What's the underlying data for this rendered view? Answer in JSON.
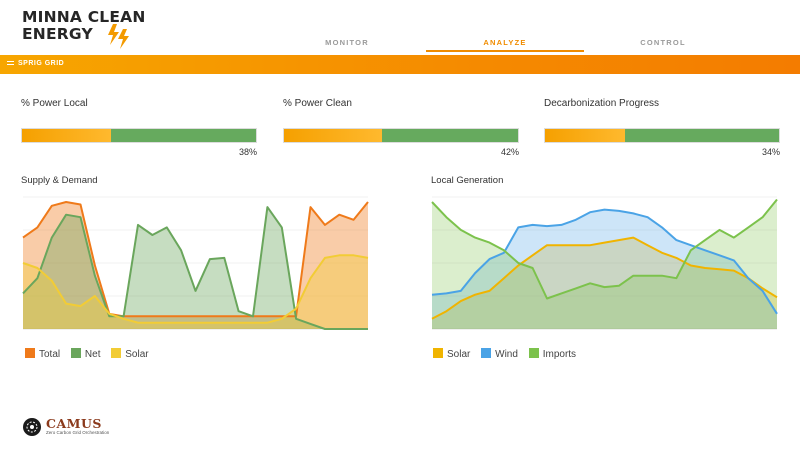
{
  "brand": {
    "line1": "MINNA CLEAN",
    "line2": "ENERGY",
    "accent": "#f08c00"
  },
  "nav": {
    "tabs": [
      {
        "label": "MONITOR"
      },
      {
        "label": "ANALYZE"
      },
      {
        "label": "CONTROL"
      }
    ],
    "active": "ANALYZE"
  },
  "toolbar": {
    "title": "SPRIG GRID"
  },
  "kpis": [
    {
      "label": "% Power Local",
      "value": "38%",
      "fraction": 0.38
    },
    {
      "label": "% Power Clean",
      "value": "42%",
      "fraction": 0.42
    },
    {
      "label": "Decarbonization Progress",
      "value": "34%",
      "fraction": 0.34
    }
  ],
  "chart_data": [
    {
      "type": "area",
      "title": "Supply & Demand",
      "x": [
        0,
        1,
        2,
        3,
        4,
        5,
        6,
        7,
        8,
        9,
        10,
        11,
        12,
        13,
        14,
        15,
        16,
        17,
        18,
        19,
        20,
        21,
        22,
        23,
        24
      ],
      "ylim": [
        0,
        100
      ],
      "series": [
        {
          "name": "Total",
          "color": "#ef7a1a",
          "values": [
            72,
            80,
            97,
            100,
            98,
            50,
            12,
            10,
            10,
            10,
            10,
            10,
            10,
            10,
            10,
            10,
            10,
            10,
            10,
            10,
            96,
            82,
            90,
            86,
            100
          ]
        },
        {
          "name": "Net",
          "color": "#6aa65c",
          "values": [
            28,
            40,
            72,
            90,
            88,
            42,
            10,
            10,
            82,
            74,
            80,
            62,
            30,
            55,
            56,
            14,
            10,
            96,
            80,
            8,
            4,
            0,
            0,
            0,
            0
          ]
        },
        {
          "name": "Solar",
          "color": "#f2cc35",
          "values": [
            52,
            48,
            38,
            20,
            18,
            26,
            12,
            8,
            5,
            5,
            5,
            5,
            5,
            5,
            5,
            5,
            5,
            5,
            8,
            16,
            40,
            56,
            58,
            58,
            56
          ]
        }
      ]
    },
    {
      "type": "area",
      "title": "Local Generation",
      "x": [
        0,
        1,
        2,
        3,
        4,
        5,
        6,
        7,
        8,
        9,
        10,
        11,
        12,
        13,
        14,
        15,
        16,
        17,
        18,
        19,
        20,
        21,
        22,
        23,
        24
      ],
      "ylim": [
        0,
        100
      ],
      "series": [
        {
          "name": "Solar",
          "color": "#f0b400",
          "values": [
            8,
            14,
            22,
            27,
            30,
            40,
            50,
            58,
            66,
            66,
            66,
            66,
            68,
            70,
            72,
            66,
            60,
            56,
            50,
            48,
            47,
            46,
            40,
            32,
            25
          ]
        },
        {
          "name": "Wind",
          "color": "#4aa3e6",
          "values": [
            27,
            28,
            30,
            44,
            55,
            60,
            80,
            82,
            81,
            82,
            86,
            92,
            94,
            93,
            91,
            88,
            80,
            70,
            66,
            62,
            58,
            54,
            40,
            30,
            12
          ]
        },
        {
          "name": "Imports",
          "color": "#7cc24c",
          "values": [
            100,
            88,
            78,
            72,
            68,
            62,
            52,
            48,
            24,
            28,
            32,
            36,
            33,
            34,
            42,
            42,
            42,
            40,
            62,
            70,
            78,
            72,
            80,
            88,
            102
          ]
        }
      ]
    }
  ],
  "legends": {
    "supply": [
      "Total",
      "Net",
      "Solar"
    ],
    "local": [
      "Solar",
      "Wind",
      "Imports"
    ]
  },
  "footer": {
    "logo_text": "CAMUS",
    "tagline": "Zero Carbon Grid Orchestration"
  }
}
